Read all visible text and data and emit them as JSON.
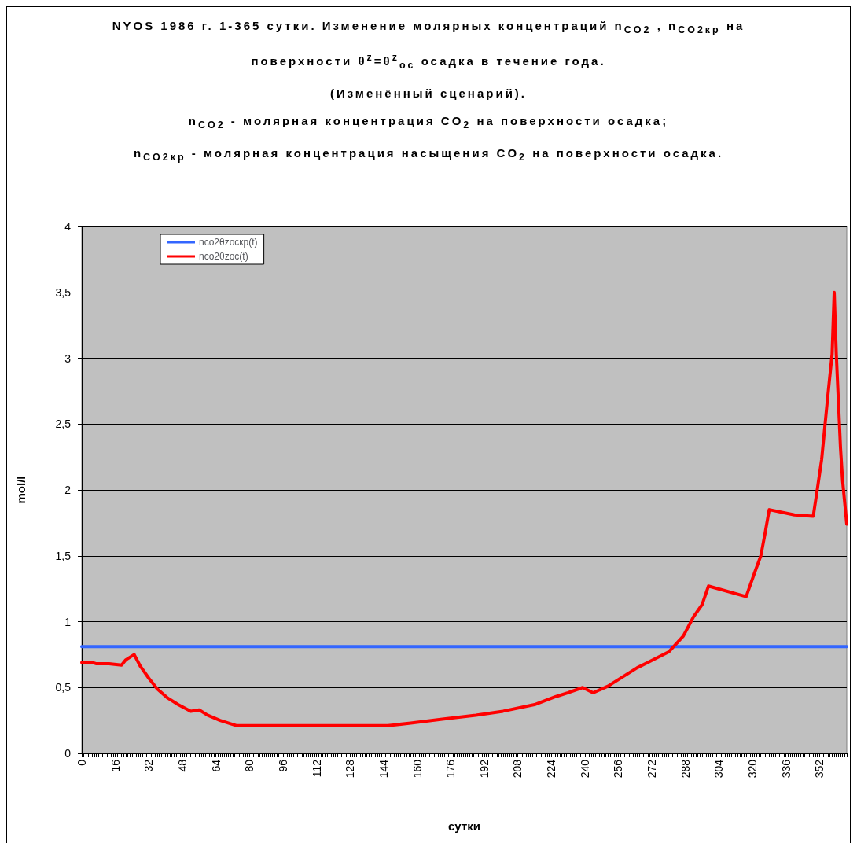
{
  "chart_data": {
    "type": "line",
    "title": "NYOS 1986 г. 1-365 сутки. Изменение молярных концентраций n$_{CO2}$ , n$_{CO2кр}$ на\nповерхности θ$^{z}$=θ$^{z}$$_{oc}$ осадка в течение года.\n(Изменённый сценарий).\nn$_{CO2}$ - молярная концентрация CO$_{2}$ на поверхности осадка;\nn$_{CO2кр}$ - молярная концентрация насыщения CO$_{2}$ на поверхности осадка.",
    "xlabel": "сутки",
    "ylabel": "mol/l",
    "xlim": [
      0,
      365
    ],
    "xticks": [
      0,
      16,
      32,
      48,
      64,
      80,
      96,
      112,
      128,
      144,
      160,
      176,
      192,
      208,
      224,
      240,
      256,
      272,
      288,
      304,
      320,
      336,
      352
    ],
    "ylim": [
      0,
      4
    ],
    "yticks": [
      0,
      {
        "value": 0.5,
        "label": "0,5"
      },
      1,
      {
        "value": 1.5,
        "label": "1,5"
      },
      2,
      {
        "value": 2.5,
        "label": "2,5"
      },
      3,
      {
        "value": 3.5,
        "label": "3,5"
      },
      4
    ],
    "grid": "y",
    "legend": "top left",
    "marker": "none",
    "line_style": "solid",
    "series": [
      {
        "name": "nco2θzocкр(t)",
        "color": "#3366ff",
        "x": [
          0,
          365
        ],
        "values": [
          0.81,
          0.81
        ]
      },
      {
        "name": "nco2θzoc(t)",
        "color": "#ff0000",
        "x": [
          0,
          5,
          7,
          13,
          19,
          21,
          25,
          28,
          32,
          36,
          41,
          46,
          52,
          56,
          60,
          66,
          74,
          146,
          157,
          172,
          188,
          201,
          216,
          226,
          232,
          239,
          244,
          251,
          265,
          270,
          275,
          280,
          287,
          292,
          296,
          299,
          317,
          321,
          324,
          326,
          328,
          340,
          349,
          351,
          353,
          356,
          358,
          359,
          360,
          362,
          363,
          365
        ],
        "values": [
          0.69,
          0.69,
          0.68,
          0.68,
          0.67,
          0.71,
          0.75,
          0.66,
          0.57,
          0.49,
          0.42,
          0.37,
          0.32,
          0.33,
          0.29,
          0.25,
          0.21,
          0.21,
          0.23,
          0.26,
          0.29,
          0.32,
          0.37,
          0.43,
          0.46,
          0.5,
          0.46,
          0.51,
          0.65,
          0.69,
          0.73,
          0.77,
          0.89,
          1.04,
          1.13,
          1.27,
          1.19,
          1.37,
          1.5,
          1.67,
          1.85,
          1.81,
          1.8,
          2.01,
          2.23,
          2.72,
          3.03,
          3.5,
          3.03,
          2.32,
          2.07,
          1.74
        ]
      }
    ]
  }
}
